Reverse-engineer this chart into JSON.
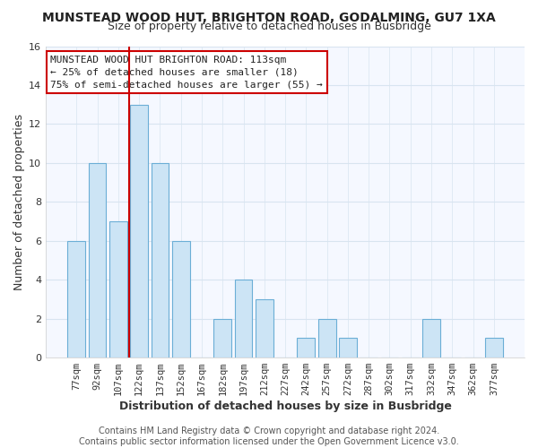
{
  "title": "MUNSTEAD WOOD HUT, BRIGHTON ROAD, GODALMING, GU7 1XA",
  "subtitle": "Size of property relative to detached houses in Busbridge",
  "xlabel": "Distribution of detached houses by size in Busbridge",
  "ylabel": "Number of detached properties",
  "bar_labels": [
    "77sqm",
    "92sqm",
    "107sqm",
    "122sqm",
    "137sqm",
    "152sqm",
    "167sqm",
    "182sqm",
    "197sqm",
    "212sqm",
    "227sqm",
    "242sqm",
    "257sqm",
    "272sqm",
    "287sqm",
    "302sqm",
    "317sqm",
    "332sqm",
    "347sqm",
    "362sqm",
    "377sqm"
  ],
  "bar_values": [
    6,
    10,
    7,
    13,
    10,
    6,
    0,
    2,
    4,
    3,
    0,
    1,
    2,
    1,
    0,
    0,
    0,
    2,
    0,
    0,
    1
  ],
  "bar_color": "#cce4f5",
  "bar_edge_color": "#6baed6",
  "vline_x_index": 2,
  "vline_color": "#cc0000",
  "annotation_line1": "MUNSTEAD WOOD HUT BRIGHTON ROAD: 113sqm",
  "annotation_line2": "← 25% of detached houses are smaller (18)",
  "annotation_line3": "75% of semi-detached houses are larger (55) →",
  "annotation_box_color": "#ffffff",
  "annotation_box_edge": "#cc0000",
  "ylim": [
    0,
    16
  ],
  "yticks": [
    0,
    2,
    4,
    6,
    8,
    10,
    12,
    14,
    16
  ],
  "footer": "Contains HM Land Registry data © Crown copyright and database right 2024.\nContains public sector information licensed under the Open Government Licence v3.0.",
  "bg_color": "#ffffff",
  "plot_bg_color": "#f5f8ff",
  "grid_color": "#d8e4f0",
  "title_fontsize": 10,
  "subtitle_fontsize": 9,
  "axis_label_fontsize": 9,
  "tick_fontsize": 7.5,
  "annotation_fontsize": 8,
  "footer_fontsize": 7
}
